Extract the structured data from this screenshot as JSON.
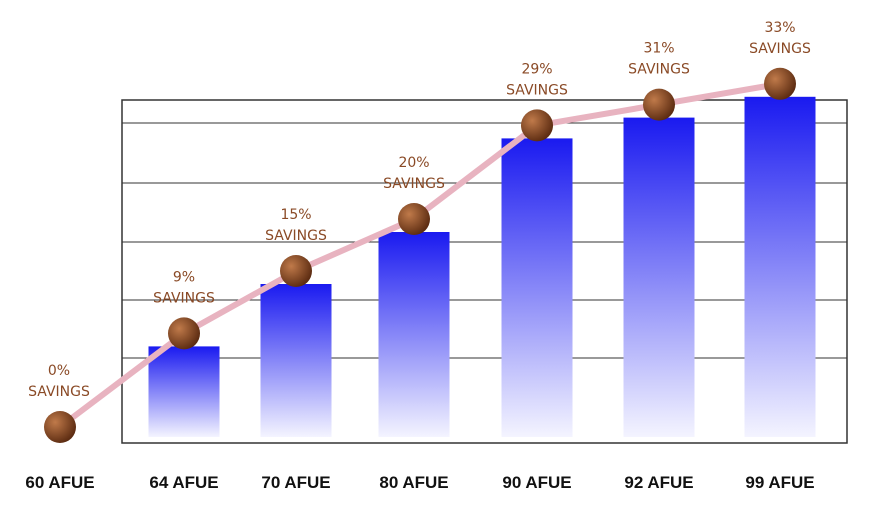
{
  "colors": {
    "bar_top": "#1a1af0",
    "bar_bottom": "#f4f4ff",
    "line": "#e8b3c0",
    "marker": "#5a2a10",
    "marker_highlight": "#c07a4a",
    "label": "#8a4a26",
    "grid": "#333333"
  },
  "chart_data": {
    "type": "bar",
    "categories": [
      "60 AFUE",
      "64 AFUE",
      "70 AFUE",
      "80 AFUE",
      "90 AFUE",
      "92 AFUE",
      "99 AFUE"
    ],
    "values": [
      0,
      9,
      15,
      20,
      29,
      31,
      33
    ],
    "savings_labels": [
      [
        "0%",
        "SAVINGS"
      ],
      [
        "9%",
        "SAVINGS"
      ],
      [
        "15%",
        "SAVINGS"
      ],
      [
        "20%",
        "SAVINGS"
      ],
      [
        "29%",
        "SAVINGS"
      ],
      [
        "31%",
        "SAVINGS"
      ],
      [
        "33%",
        "SAVINGS"
      ]
    ],
    "title": "",
    "xlabel": "",
    "ylabel": "",
    "ylim": [
      0,
      35
    ],
    "grid": true,
    "overlay_line": true
  }
}
